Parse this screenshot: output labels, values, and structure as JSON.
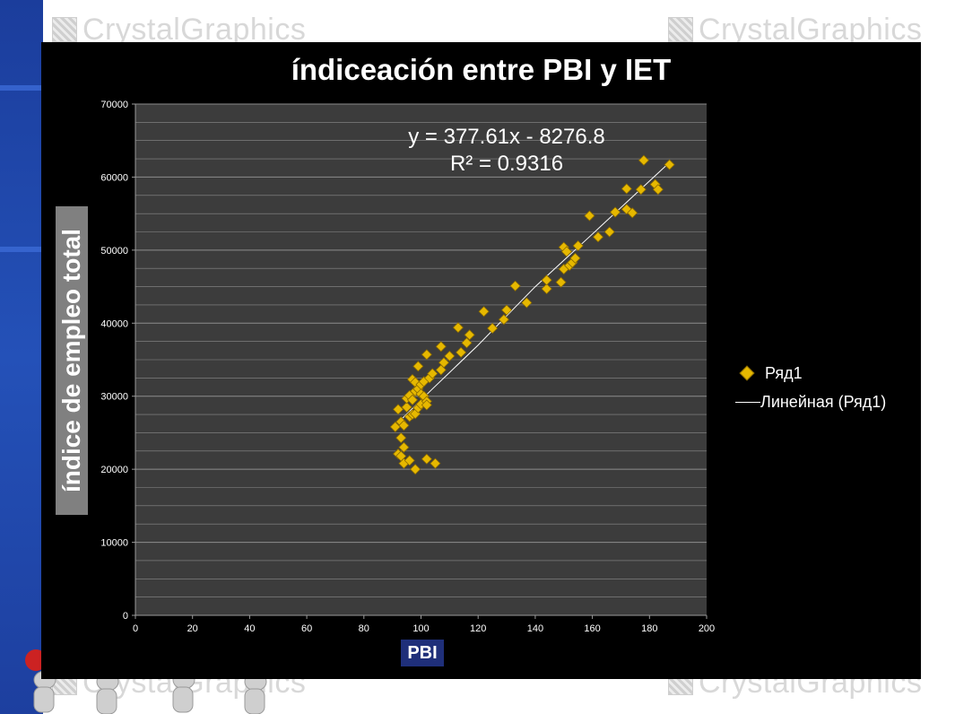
{
  "watermarks": [
    "CrystalGraphics",
    "CrystalGraphics",
    "CrystalGraphics",
    "CrystalGraphics"
  ],
  "chart_data": {
    "type": "scatter",
    "title": "índiceación entre PBI y IET",
    "xlabel": "PBI",
    "ylabel": "índice de empleo total",
    "xlim": [
      0,
      200
    ],
    "ylim": [
      0,
      70000
    ],
    "x_ticks": [
      "0",
      "20",
      "40",
      "60",
      "80",
      "100",
      "120",
      "140",
      "160",
      "180",
      "200"
    ],
    "y_ticks": [
      "0",
      "10000",
      "20000",
      "30000",
      "40000",
      "50000",
      "60000",
      "70000"
    ],
    "grid": true,
    "legend_position": "right",
    "colors": {
      "marker": "#e6b800",
      "marker_edge": "#8a6a00",
      "plot_bg": "#3c3c3c",
      "frame_bg": "#000000",
      "trendline": "#ffffff"
    },
    "series": [
      {
        "name": "Ряд1",
        "points": [
          [
            91,
            25800
          ],
          [
            92,
            28200
          ],
          [
            92,
            22100
          ],
          [
            93,
            21800
          ],
          [
            93,
            26500
          ],
          [
            93,
            24300
          ],
          [
            94,
            23000
          ],
          [
            94,
            26000
          ],
          [
            94,
            20800
          ],
          [
            95,
            28500
          ],
          [
            95,
            29700
          ],
          [
            96,
            27200
          ],
          [
            96,
            21200
          ],
          [
            96,
            30100
          ],
          [
            97,
            32300
          ],
          [
            97,
            29500
          ],
          [
            97,
            27500
          ],
          [
            98,
            31900
          ],
          [
            98,
            30700
          ],
          [
            98,
            27600
          ],
          [
            98,
            20000
          ],
          [
            99,
            34100
          ],
          [
            99,
            31000
          ],
          [
            99,
            28400
          ],
          [
            100,
            31600
          ],
          [
            100,
            30300
          ],
          [
            100,
            28900
          ],
          [
            101,
            32000
          ],
          [
            101,
            30000
          ],
          [
            102,
            29300
          ],
          [
            102,
            35700
          ],
          [
            102,
            28800
          ],
          [
            103,
            32500
          ],
          [
            102,
            21400
          ],
          [
            104,
            33100
          ],
          [
            105,
            20800
          ],
          [
            107,
            36800
          ],
          [
            107,
            33600
          ],
          [
            108,
            34600
          ],
          [
            110,
            35500
          ],
          [
            113,
            39400
          ],
          [
            114,
            36000
          ],
          [
            116,
            37300
          ],
          [
            117,
            38400
          ],
          [
            122,
            41600
          ],
          [
            125,
            39300
          ],
          [
            129,
            40500
          ],
          [
            130,
            41800
          ],
          [
            133,
            45100
          ],
          [
            137,
            42800
          ],
          [
            144,
            44700
          ],
          [
            144,
            45900
          ],
          [
            149,
            45600
          ],
          [
            150,
            50400
          ],
          [
            150,
            47400
          ],
          [
            151,
            49800
          ],
          [
            152,
            47900
          ],
          [
            153,
            48300
          ],
          [
            154,
            48900
          ],
          [
            155,
            50600
          ],
          [
            159,
            54700
          ],
          [
            162,
            51800
          ],
          [
            166,
            52500
          ],
          [
            168,
            55200
          ],
          [
            172,
            58400
          ],
          [
            172,
            55600
          ],
          [
            174,
            55100
          ],
          [
            177,
            58300
          ],
          [
            178,
            62300
          ],
          [
            182,
            59000
          ],
          [
            183,
            58300
          ],
          [
            187,
            61700
          ]
        ]
      },
      {
        "name": "Линейная (Ряд1)",
        "type": "line",
        "points": [
          [
            92,
            26400
          ],
          [
            104,
            31000
          ],
          [
            120,
            37000
          ],
          [
            140,
            45000
          ],
          [
            160,
            52200
          ],
          [
            187,
            62000
          ]
        ]
      }
    ],
    "annotations": [
      "y = 377.61x - 8276.8",
      "R² = 0.9316"
    ]
  }
}
